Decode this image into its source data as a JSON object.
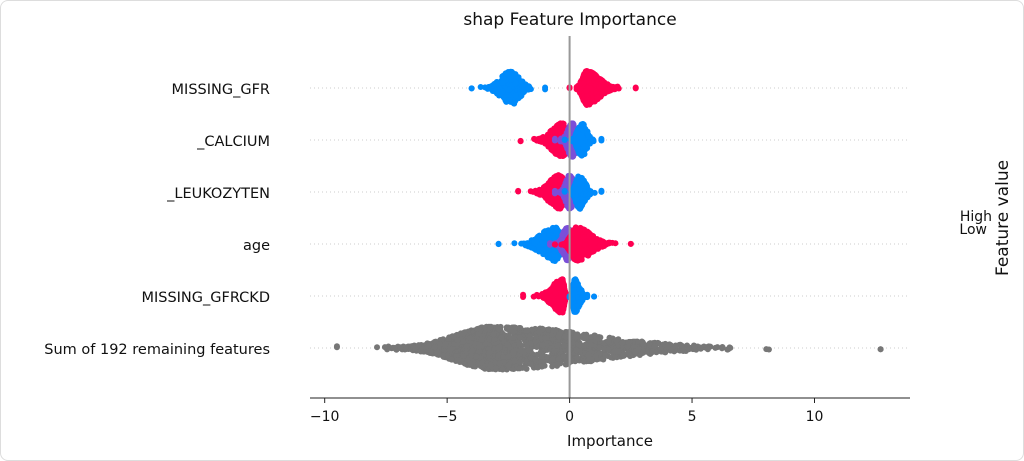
{
  "chart_data": {
    "type": "scatter",
    "subtype": "beeswarm",
    "title": "shap Feature Importance",
    "xlabel": "Importance",
    "xlim": [
      -10.6,
      13.9
    ],
    "xticks": [
      -10,
      -5,
      0,
      5,
      10
    ],
    "xtick_labels": [
      "−10",
      "−5",
      "0",
      "5",
      "10"
    ],
    "grid": false,
    "legend": {
      "title": "Feature value",
      "high_label": "High",
      "low_label": "Low",
      "placement": "right"
    },
    "colors": {
      "high": "#ff0051",
      "low": "#008bfb",
      "mid": "#7b4fd8",
      "other": "#777777",
      "zero_line": "#999999"
    },
    "features": [
      {
        "name": "MISSING_GFR",
        "clusters": [
          {
            "value": "low",
            "center": -2.4,
            "min": -4.0,
            "max": -1.0,
            "count": 300
          },
          {
            "value": "high",
            "center": 0.7,
            "min": 0.0,
            "max": 2.7,
            "count": 700
          }
        ]
      },
      {
        "name": "_CALCIUM",
        "clusters": [
          {
            "value": "high",
            "center": -0.3,
            "min": -2.0,
            "max": 0.5,
            "count": 450
          },
          {
            "value": "mid",
            "center": 0.1,
            "min": -0.6,
            "max": 0.8,
            "count": 350
          },
          {
            "value": "low",
            "center": 0.5,
            "min": -0.2,
            "max": 1.3,
            "count": 200
          }
        ]
      },
      {
        "name": "_LEUKOZYTEN",
        "clusters": [
          {
            "value": "high",
            "center": -0.4,
            "min": -2.1,
            "max": 0.4,
            "count": 450
          },
          {
            "value": "mid",
            "center": 0.0,
            "min": -0.6,
            "max": 0.7,
            "count": 350
          },
          {
            "value": "low",
            "center": 0.4,
            "min": -0.2,
            "max": 1.3,
            "count": 200
          }
        ]
      },
      {
        "name": "age",
        "clusters": [
          {
            "value": "low",
            "center": -0.6,
            "min": -2.9,
            "max": 0.3,
            "count": 350
          },
          {
            "value": "mid",
            "center": -0.1,
            "min": -0.8,
            "max": 0.6,
            "count": 250
          },
          {
            "value": "high",
            "center": 0.3,
            "min": -0.6,
            "max": 2.5,
            "count": 500
          }
        ]
      },
      {
        "name": "MISSING_GFRCKD",
        "clusters": [
          {
            "value": "high",
            "center": -0.3,
            "min": -1.9,
            "max": 0.0,
            "count": 350
          },
          {
            "value": "low",
            "center": 0.2,
            "min": 0.0,
            "max": 1.0,
            "count": 250
          }
        ]
      },
      {
        "name": "Sum of 192 remaining features",
        "clusters": [
          {
            "value": "other",
            "center": -3.0,
            "min": -9.5,
            "max": 12.7,
            "count": 1800
          }
        ]
      }
    ]
  }
}
